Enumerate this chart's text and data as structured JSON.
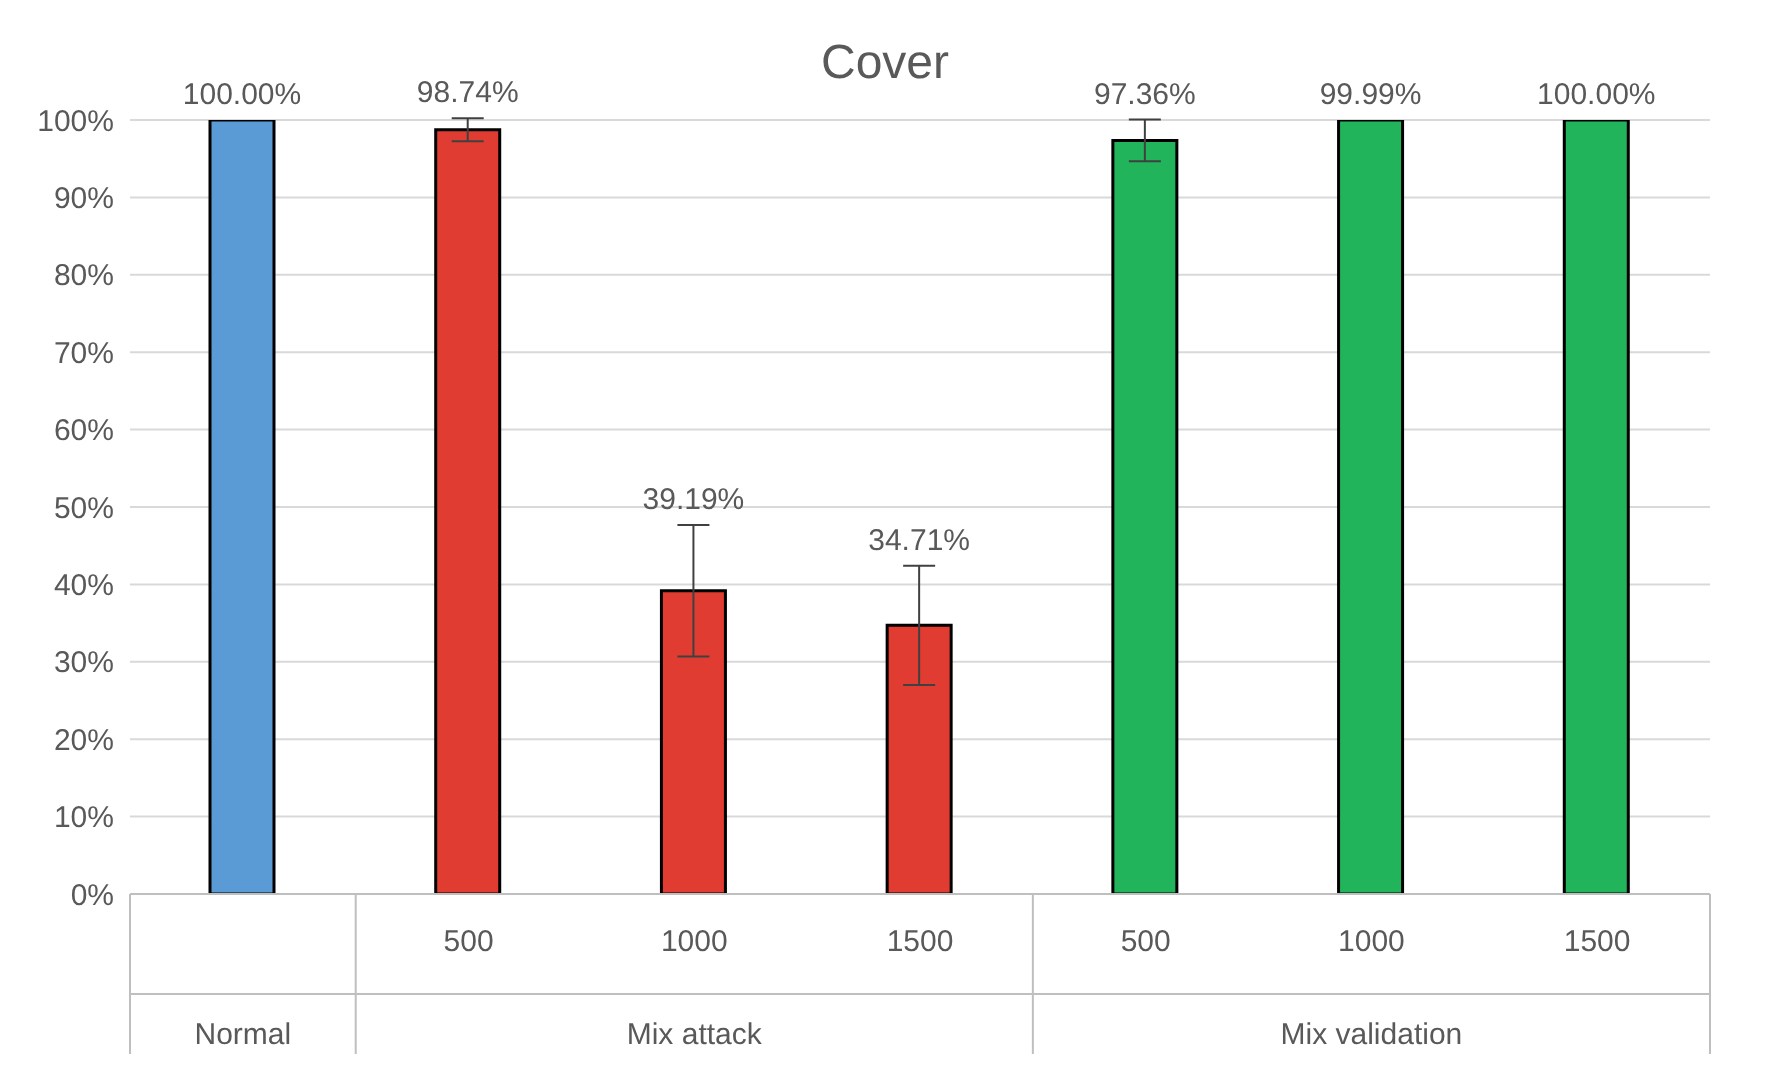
{
  "chart_data": {
    "type": "bar",
    "title": "Cover",
    "categories": [
      null,
      "500",
      "1000",
      "1500",
      "500",
      "1000",
      "1500"
    ],
    "values": [
      100,
      98.74,
      39.19,
      34.71,
      97.36,
      99.99,
      100
    ],
    "colors": [
      "#5b9bd5",
      "#e03c31",
      "#e03c31",
      "#e03c31",
      "#21b45b",
      "#21b45b",
      "#21b45b"
    ],
    "errors": [
      null,
      1.5,
      8.5,
      7.7,
      2.7,
      null,
      null
    ],
    "value_labels": [
      "100.00%",
      "98.74%",
      "39.19%",
      "34.71%",
      "97.36%",
      "99.99%",
      "100.00%"
    ],
    "annotations": [
      "Normal",
      "Mix attack",
      "Mix validation"
    ],
    "ylim": [
      0,
      100
    ],
    "yticks": [
      {
        "value": 0,
        "label": "0%"
      },
      {
        "value": 10,
        "label": "10%"
      },
      {
        "value": 20,
        "label": "20%"
      },
      {
        "value": 30,
        "label": "30%"
      },
      {
        "value": 40,
        "label": "40%"
      },
      {
        "value": 50,
        "label": "50%"
      },
      {
        "value": 60,
        "label": "60%"
      },
      {
        "value": 70,
        "label": "70%"
      },
      {
        "value": 80,
        "label": "80%"
      },
      {
        "value": 90,
        "label": "90%"
      },
      {
        "value": 100,
        "label": "100%"
      }
    ],
    "grid": "y",
    "legend": false
  }
}
